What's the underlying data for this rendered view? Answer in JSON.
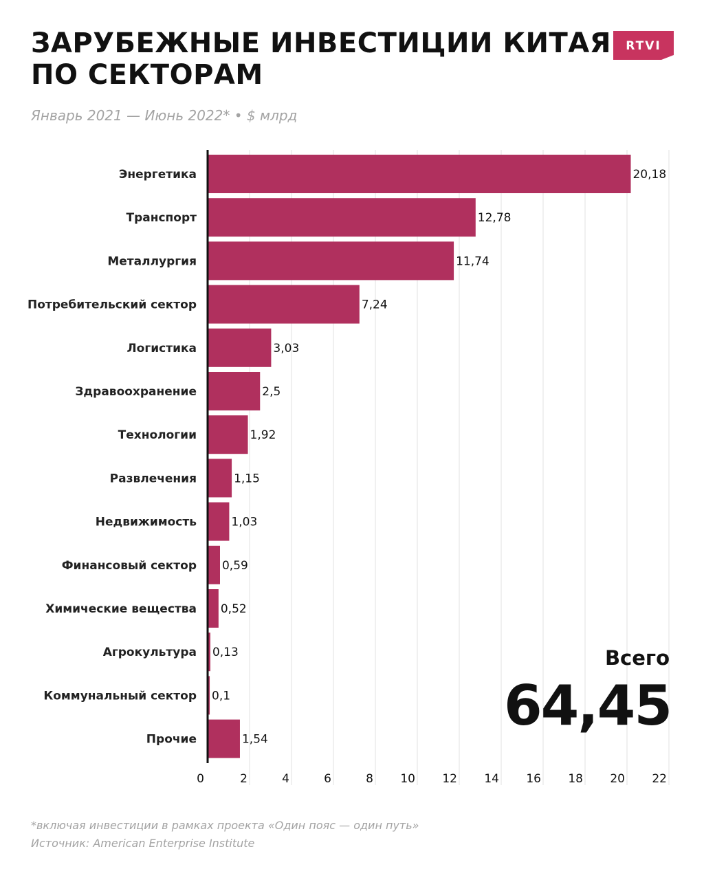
{
  "header": {
    "title_line1": "ЗАРУБЕЖНЫЕ ИНВЕСТИЦИИ КИТАЯ",
    "title_line2": "ПО СЕКТОРАМ",
    "subtitle": "Январь 2021 — Июнь 2022* • $ млрд",
    "logo_text": "RTVI"
  },
  "colors": {
    "bar": "#b0305e",
    "logo": "#c8345f",
    "grid": "#e6e6e6",
    "axis": "#111111",
    "muted_text": "#a3a3a3"
  },
  "chart_data": {
    "type": "bar",
    "orientation": "horizontal",
    "title": "ЗАРУБЕЖНЫЕ ИНВЕСТИЦИИ КИТАЯ ПО СЕКТОРАМ",
    "categories": [
      "Энергетика",
      "Транспорт",
      "Металлургия",
      "Потребительский сектор",
      "Логистика",
      "Здравоохранение",
      "Технологии",
      "Развлечения",
      "Недвижимость",
      "Финансовый сектор",
      "Химические вещества",
      "Агрокультура",
      "Коммунальный сектор",
      "Прочие"
    ],
    "values": [
      20.18,
      12.78,
      11.74,
      7.24,
      3.03,
      2.5,
      1.92,
      1.15,
      1.03,
      0.59,
      0.52,
      0.13,
      0.1,
      1.54
    ],
    "value_labels": [
      "20,18",
      "12,78",
      "11,74",
      "7,24",
      "3,03",
      "2,5",
      "1,92",
      "1,15",
      "1,03",
      "0,59",
      "0,52",
      "0,13",
      "0,1",
      "1,54"
    ],
    "xlim": [
      0,
      22
    ],
    "x_ticks": [
      0,
      2,
      4,
      6,
      8,
      10,
      12,
      14,
      16,
      18,
      20,
      22
    ],
    "grid": true,
    "xlabel": "",
    "ylabel": ""
  },
  "total": {
    "label": "Всего",
    "value": "64,45"
  },
  "footer": {
    "note": "*включая инвестиции в рамках проекта «Один пояс — один путь»",
    "source": "Источник: American Enterprise Institute"
  }
}
